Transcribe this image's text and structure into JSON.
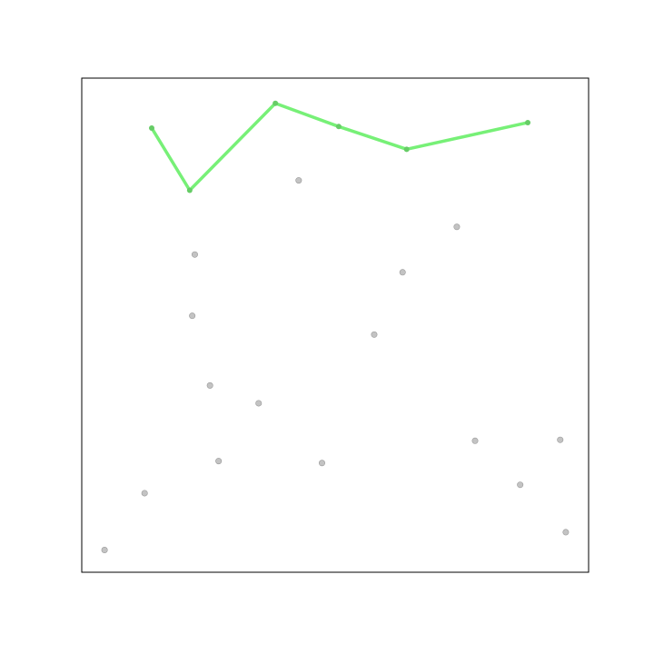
{
  "chart_data": {
    "type": "scatter",
    "title": "",
    "xlabel": "",
    "ylabel": "",
    "xlim": [
      0,
      100
    ],
    "ylim": [
      0,
      100
    ],
    "grid": false,
    "axis_ticks": false,
    "scatter_series": {
      "color": "#a9a9a9",
      "x": [
        4.5,
        12.4,
        21.8,
        22.3,
        25.3,
        27.0,
        34.9,
        42.8,
        47.4,
        57.7,
        63.3,
        74.0,
        77.6,
        86.5,
        94.4,
        95.5
      ],
      "y": [
        4.5,
        16.0,
        51.9,
        64.3,
        37.8,
        22.5,
        34.2,
        79.3,
        22.1,
        48.1,
        60.7,
        69.9,
        26.6,
        17.7,
        26.8,
        8.1
      ]
    },
    "line_series": {
      "color": "#77f077",
      "x": [
        13.8,
        21.3,
        38.2,
        50.7,
        64.1,
        88.0
      ],
      "y": [
        89.9,
        77.3,
        94.9,
        90.2,
        85.6,
        91.0
      ]
    }
  }
}
